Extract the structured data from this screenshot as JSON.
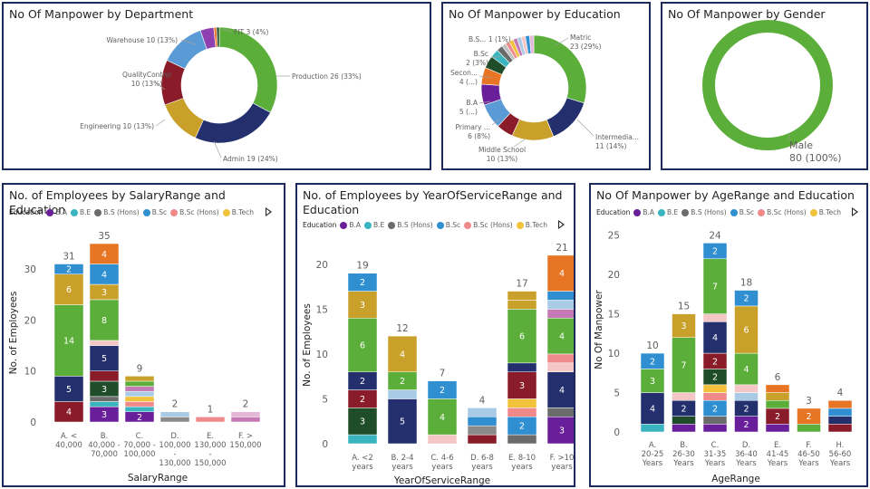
{
  "colors": {
    "BA": "#6a1f9a",
    "BE": "#3ab5c0",
    "BSHons": "#6b6b6b",
    "BSc": "#2f8fd0",
    "BScHons": "#f08a8a",
    "BTech": "#f2c23a",
    "Diploma": "#bfbfbf",
    "FSc": "#1f4d2a",
    "Intermediate": "#24306e",
    "Matric": "#5cae3a",
    "MBA": "#c8a02a",
    "MS": "#e87524",
    "Middle": "#8a1c2a",
    "Other1": "#f4c6c6",
    "Other2": "#c67ab5",
    "Other3": "#a9cbe6",
    "Other4": "#e4b7d8",
    "Other5": "#f5a623"
  },
  "cards": {
    "department": {
      "title": "No Of Manpower by Department"
    },
    "education": {
      "title": "No Of Manpower by Education"
    },
    "gender": {
      "title": "No Of Manpower by Gender"
    },
    "salary": {
      "title": "No. of Employees by SalaryRange and Education"
    },
    "service": {
      "title_line1": "No. of Employees by YearOfServiceRange and",
      "title_line2": "Education"
    },
    "age": {
      "title": "No Of Manpower by AgeRange and Education"
    }
  },
  "legend": {
    "title": "Education",
    "items": [
      {
        "label": "B.A",
        "color": "#6a1f9a"
      },
      {
        "label": "B.E",
        "color": "#3ab5c0"
      },
      {
        "label": "B.S (Hons)",
        "color": "#6b6b6b"
      },
      {
        "label": "B.Sc",
        "color": "#2f8fd0"
      },
      {
        "label": "B.Sc (Hons)",
        "color": "#f08a8a"
      },
      {
        "label": "B.Tech",
        "color": "#f2c23a"
      }
    ]
  },
  "chart_data": [
    {
      "id": "department",
      "type": "pie",
      "title": "No Of Manpower by Department",
      "slices": [
        {
          "label": "Production",
          "value": 26,
          "pct": "33%",
          "color": "#5cae3a",
          "text": "Production 26 (33%)"
        },
        {
          "label": "Admin",
          "value": 19,
          "pct": "24%",
          "color": "#24306e",
          "text": "Admin 19 (24%)"
        },
        {
          "label": "Engineering",
          "value": 10,
          "pct": "13%",
          "color": "#c8a02a",
          "text": "Engineering 10 (13%)"
        },
        {
          "label": "QualityControl",
          "value": 10,
          "pct": "13%",
          "color": "#8a1c2a",
          "text_lines": [
            "QualityControl",
            "10 (13%)"
          ]
        },
        {
          "label": "Warehouse",
          "value": 10,
          "pct": "13%",
          "color": "#5b9bd5",
          "text": "Warehouse 10 (13%)"
        },
        {
          "label": "FIT",
          "value": 3,
          "pct": "4%",
          "color": "#8e3fb0",
          "text": "FIT 3 (4%)"
        },
        {
          "label": "",
          "value": 0.6,
          "color": "#e87524"
        },
        {
          "label": "",
          "value": 0.6,
          "color": "#1f4d2a"
        }
      ]
    },
    {
      "id": "education",
      "type": "pie",
      "title": "No Of Manpower by Education",
      "slices": [
        {
          "label": "Matric",
          "value": 23,
          "color": "#5cae3a",
          "text_lines": [
            "Matric",
            "23 (29%)"
          ]
        },
        {
          "label": "Intermediate",
          "value": 11,
          "color": "#24306e",
          "text_lines": [
            "Intermedia...",
            "11 (14%)"
          ]
        },
        {
          "label": "Middle School",
          "value": 10,
          "color": "#c8a02a",
          "text_lines": [
            "Middle School",
            "10 (13%)"
          ]
        },
        {
          "label": "",
          "value": 4,
          "color": "#8a1c2a"
        },
        {
          "label": "Primary",
          "value": 6,
          "color": "#5b9bd5",
          "text_lines": [
            "Primary ...",
            "6 (8%)"
          ]
        },
        {
          "label": "B.A",
          "value": 5,
          "color": "#6a1f9a",
          "text_lines": [
            "B.A",
            "5 (...)"
          ]
        },
        {
          "label": "Secondary",
          "value": 4,
          "color": "#e87524",
          "text_lines": [
            "Secon...",
            "4 (...)"
          ]
        },
        {
          "label": "",
          "value": 3,
          "color": "#1f4d2a"
        },
        {
          "label": "B.Sc",
          "value": 2,
          "color": "#3ab5c0",
          "text_lines": [
            "B.Sc",
            "2 (3%)"
          ]
        },
        {
          "label": "",
          "value": 1.5,
          "color": "#6b6b6b"
        },
        {
          "label": "B.S",
          "value": 1,
          "color": "#bfbfbf",
          "text": "B.S... 1 (1%)"
        },
        {
          "label": "",
          "value": 1,
          "color": "#f08a8a"
        },
        {
          "label": "",
          "value": 1,
          "color": "#f2c23a"
        },
        {
          "label": "",
          "value": 1,
          "color": "#c67ab5"
        },
        {
          "label": "",
          "value": 1,
          "color": "#a9cbe6"
        },
        {
          "label": "",
          "value": 1,
          "color": "#f4c6c6"
        },
        {
          "label": "",
          "value": 1,
          "color": "#2f8fd0"
        },
        {
          "label": "",
          "value": 1,
          "color": "#e4b7d8"
        }
      ]
    },
    {
      "id": "gender",
      "type": "pie",
      "title": "No Of Manpower by Gender",
      "slices": [
        {
          "label": "Male",
          "value": 80,
          "color": "#5cae3a",
          "text_lines": [
            "Male",
            "80 (100%)"
          ]
        }
      ]
    },
    {
      "id": "salary",
      "type": "bar",
      "title": "No. of Employees by SalaryRange and Education",
      "xlabel": "SalaryRange",
      "ylabel": "No. of Employees",
      "ylim": [
        0,
        35
      ],
      "yticks": [
        0,
        10,
        20,
        30
      ],
      "categories": [
        {
          "lines": [
            "A. <",
            "40,000"
          ],
          "total": 31,
          "segs": [
            {
              "v": 4,
              "c": "#8a1c2a",
              "l": "4"
            },
            {
              "v": 5,
              "c": "#24306e",
              "l": "5"
            },
            {
              "v": 14,
              "c": "#5cae3a",
              "l": "14"
            },
            {
              "v": 6,
              "c": "#c8a02a",
              "l": "6"
            },
            {
              "v": 2,
              "c": "#2f8fd0",
              "l": "2"
            }
          ]
        },
        {
          "lines": [
            "B.",
            "40,000 -",
            "70,000"
          ],
          "total": 35,
          "segs": [
            {
              "v": 3,
              "c": "#6a1f9a",
              "l": "3"
            },
            {
              "v": 1,
              "c": "#3ab5c0"
            },
            {
              "v": 1,
              "c": "#6b6b6b"
            },
            {
              "v": 3,
              "c": "#1f4d2a",
              "l": "3"
            },
            {
              "v": 2,
              "c": "#8a1c2a"
            },
            {
              "v": 5,
              "c": "#24306e",
              "l": "5"
            },
            {
              "v": 1,
              "c": "#f4c6c6"
            },
            {
              "v": 8,
              "c": "#5cae3a",
              "l": "8"
            },
            {
              "v": 3,
              "c": "#c8a02a",
              "l": "3"
            },
            {
              "v": 4,
              "c": "#2f8fd0",
              "l": "4"
            },
            {
              "v": 4,
              "c": "#e87524",
              "l": "4"
            }
          ]
        },
        {
          "lines": [
            "C.",
            "70,000 -",
            "100,000"
          ],
          "total": 9,
          "segs": [
            {
              "v": 2,
              "c": "#6a1f9a",
              "l": "2"
            },
            {
              "v": 1,
              "c": "#3ab5c0"
            },
            {
              "v": 1,
              "c": "#f08a8a"
            },
            {
              "v": 1,
              "c": "#f2c23a"
            },
            {
              "v": 1,
              "c": "#a9cbe6"
            },
            {
              "v": 1,
              "c": "#c67ab5"
            },
            {
              "v": 1,
              "c": "#5cae3a"
            },
            {
              "v": 1,
              "c": "#c8a02a"
            }
          ]
        },
        {
          "lines": [
            "D.",
            "100,000",
            "-",
            "130,000"
          ],
          "total": 2,
          "segs": [
            {
              "v": 1,
              "c": "#8a8a8a"
            },
            {
              "v": 1,
              "c": "#a9cbe6"
            }
          ]
        },
        {
          "lines": [
            "E.",
            "130,000",
            "-",
            "150,000"
          ],
          "total": 1,
          "segs": [
            {
              "v": 1,
              "c": "#f08a8a"
            }
          ]
        },
        {
          "lines": [
            "F. >",
            "150,000"
          ],
          "total": 2,
          "segs": [
            {
              "v": 1,
              "c": "#c67ab5"
            },
            {
              "v": 1,
              "c": "#e4b7d8"
            }
          ]
        }
      ]
    },
    {
      "id": "service",
      "type": "bar",
      "title": "No. of Employees by YearOfServiceRange and Education",
      "xlabel": "YearOfServiceRange",
      "ylabel": "No. of Employees",
      "ylim": [
        0,
        22
      ],
      "yticks": [
        0,
        5,
        10,
        15,
        20
      ],
      "categories": [
        {
          "lines": [
            "A. <2",
            "years"
          ],
          "total": 19,
          "segs": [
            {
              "v": 1,
              "c": "#3ab5c0"
            },
            {
              "v": 3,
              "c": "#1f4d2a",
              "l": "3"
            },
            {
              "v": 2,
              "c": "#8a1c2a",
              "l": "2"
            },
            {
              "v": 2,
              "c": "#24306e",
              "l": "2"
            },
            {
              "v": 6,
              "c": "#5cae3a",
              "l": "6"
            },
            {
              "v": 3,
              "c": "#c8a02a",
              "l": "3"
            },
            {
              "v": 2,
              "c": "#2f8fd0",
              "l": "2"
            }
          ]
        },
        {
          "lines": [
            "B. 2-4",
            "years"
          ],
          "total": 12,
          "segs": [
            {
              "v": 5,
              "c": "#24306e",
              "l": "5"
            },
            {
              "v": 1,
              "c": "#a9cbe6"
            },
            {
              "v": 2,
              "c": "#5cae3a",
              "l": "2"
            },
            {
              "v": 4,
              "c": "#c8a02a",
              "l": "4"
            }
          ]
        },
        {
          "lines": [
            "C. 4-6",
            "years"
          ],
          "total": 7,
          "segs": [
            {
              "v": 1,
              "c": "#f4c6c6"
            },
            {
              "v": 4,
              "c": "#5cae3a",
              "l": "4"
            },
            {
              "v": 2,
              "c": "#2f8fd0",
              "l": "2"
            }
          ]
        },
        {
          "lines": [
            "D. 6-8",
            "years"
          ],
          "total": 4,
          "segs": [
            {
              "v": 1,
              "c": "#8a1c2a"
            },
            {
              "v": 1,
              "c": "#8a8a8a"
            },
            {
              "v": 1,
              "c": "#2f8fd0"
            },
            {
              "v": 1,
              "c": "#a9cbe6"
            }
          ]
        },
        {
          "lines": [
            "E. 8-10",
            "years"
          ],
          "total": 17,
          "segs": [
            {
              "v": 1,
              "c": "#6b6b6b"
            },
            {
              "v": 2,
              "c": "#2f8fd0",
              "l": "2"
            },
            {
              "v": 1,
              "c": "#f08a8a"
            },
            {
              "v": 1,
              "c": "#f2c23a"
            },
            {
              "v": 3,
              "c": "#8a1c2a",
              "l": "3"
            },
            {
              "v": 1,
              "c": "#24306e"
            },
            {
              "v": 6,
              "c": "#5cae3a",
              "l": "6"
            },
            {
              "v": 1,
              "c": "#c8a02a"
            },
            {
              "v": 1,
              "c": "#c8a02a"
            }
          ]
        },
        {
          "lines": [
            "F. >10",
            "years"
          ],
          "total": 21,
          "segs": [
            {
              "v": 3,
              "c": "#6a1f9a",
              "l": "3"
            },
            {
              "v": 1,
              "c": "#6b6b6b"
            },
            {
              "v": 4,
              "c": "#24306e",
              "l": "4"
            },
            {
              "v": 1,
              "c": "#f4c6c6"
            },
            {
              "v": 1,
              "c": "#f08a8a"
            },
            {
              "v": 4,
              "c": "#5cae3a",
              "l": "4"
            },
            {
              "v": 1,
              "c": "#c67ab5"
            },
            {
              "v": 1,
              "c": "#a9cbe6"
            },
            {
              "v": 1,
              "c": "#2f8fd0"
            },
            {
              "v": 4,
              "c": "#e87524",
              "l": "4"
            }
          ]
        }
      ]
    },
    {
      "id": "age",
      "type": "bar",
      "title": "No Of Manpower by AgeRange and Education",
      "xlabel": "AgeRange",
      "ylabel": "No Of Manpower",
      "ylim": [
        0,
        26
      ],
      "yticks": [
        0,
        5,
        10,
        15,
        20,
        25
      ],
      "categories": [
        {
          "lines": [
            "A.",
            "20-25",
            "Years"
          ],
          "total": 10,
          "segs": [
            {
              "v": 1,
              "c": "#3ab5c0"
            },
            {
              "v": 4,
              "c": "#24306e",
              "l": "4"
            },
            {
              "v": 3,
              "c": "#5cae3a",
              "l": "3"
            },
            {
              "v": 2,
              "c": "#2f8fd0",
              "l": "2"
            }
          ]
        },
        {
          "lines": [
            "B.",
            "26-30",
            "Years"
          ],
          "total": 15,
          "segs": [
            {
              "v": 1,
              "c": "#6a1f9a"
            },
            {
              "v": 1,
              "c": "#1f4d2a"
            },
            {
              "v": 2,
              "c": "#24306e",
              "l": "2"
            },
            {
              "v": 1,
              "c": "#f4c6c6"
            },
            {
              "v": 7,
              "c": "#5cae3a",
              "l": "7"
            },
            {
              "v": 3,
              "c": "#c8a02a",
              "l": "3"
            }
          ]
        },
        {
          "lines": [
            "C.",
            "31-35",
            "Years"
          ],
          "total": 24,
          "segs": [
            {
              "v": 1,
              "c": "#6a1f9a"
            },
            {
              "v": 1,
              "c": "#6b6b6b"
            },
            {
              "v": 2,
              "c": "#2f8fd0",
              "l": "2"
            },
            {
              "v": 1,
              "c": "#f08a8a"
            },
            {
              "v": 1,
              "c": "#f2c23a"
            },
            {
              "v": 2,
              "c": "#1f4d2a",
              "l": "2"
            },
            {
              "v": 2,
              "c": "#8a1c2a",
              "l": "2"
            },
            {
              "v": 4,
              "c": "#24306e",
              "l": "4"
            },
            {
              "v": 1,
              "c": "#f4c6c6"
            },
            {
              "v": 7,
              "c": "#5cae3a",
              "l": "7"
            },
            {
              "v": 2,
              "c": "#2f8fd0",
              "l": "2"
            }
          ]
        },
        {
          "lines": [
            "D.",
            "36-40",
            "Years"
          ],
          "total": 18,
          "segs": [
            {
              "v": 2,
              "c": "#6a1f9a",
              "l": "2"
            },
            {
              "v": 2,
              "c": "#24306e",
              "l": "2"
            },
            {
              "v": 1,
              "c": "#a9cbe6"
            },
            {
              "v": 1,
              "c": "#f4c6c6"
            },
            {
              "v": 4,
              "c": "#5cae3a",
              "l": "4"
            },
            {
              "v": 6,
              "c": "#c8a02a",
              "l": "6"
            },
            {
              "v": 2,
              "c": "#2f8fd0",
              "l": "2"
            }
          ]
        },
        {
          "lines": [
            "E.",
            "41-45",
            "Years"
          ],
          "total": 6,
          "segs": [
            {
              "v": 1,
              "c": "#6a1f9a"
            },
            {
              "v": 2,
              "c": "#8a1c2a",
              "l": "2"
            },
            {
              "v": 1,
              "c": "#5cae3a"
            },
            {
              "v": 1,
              "c": "#c8a02a"
            },
            {
              "v": 1,
              "c": "#e87524"
            }
          ]
        },
        {
          "lines": [
            "F.",
            "46-50",
            "Years"
          ],
          "total": 3,
          "segs": [
            {
              "v": 1,
              "c": "#5cae3a"
            },
            {
              "v": 2,
              "c": "#e87524",
              "l": "2"
            }
          ]
        },
        {
          "lines": [
            "H.",
            "56-60",
            "Years"
          ],
          "total": 4,
          "segs": [
            {
              "v": 1,
              "c": "#8a1c2a"
            },
            {
              "v": 1,
              "c": "#24306e"
            },
            {
              "v": 1,
              "c": "#2f8fd0"
            },
            {
              "v": 1,
              "c": "#e87524"
            }
          ]
        }
      ]
    }
  ]
}
